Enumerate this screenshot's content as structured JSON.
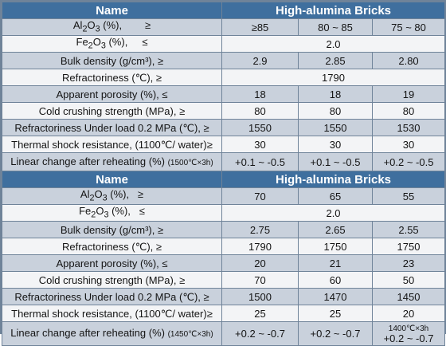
{
  "tables": [
    {
      "header": {
        "name": "Name",
        "product": "High-alumina Bricks"
      },
      "rows": [
        {
          "label": [
            "Al",
            "2",
            "O",
            "3",
            " (%),        ≥"
          ],
          "v": [
            "≥85",
            "80 ~ 85",
            "75 ~ 80"
          ]
        },
        {
          "label": [
            "Fe",
            "2",
            "O",
            "3",
            " (%),     ≤"
          ],
          "v": [
            "2.0"
          ]
        },
        {
          "label_text": "Bulk density (g/cm³),   ≥",
          "v": [
            "2.9",
            "2.85",
            "2.80"
          ]
        },
        {
          "label_text": "Refractoriness (℃),  ≥",
          "v": [
            "1790"
          ]
        },
        {
          "label_text": "Apparent porosity (%),  ≤",
          "v": [
            "18",
            "18",
            "19"
          ]
        },
        {
          "label_text": "Cold crushing strength (MPa),  ≥",
          "v": [
            "80",
            "80",
            "80"
          ]
        },
        {
          "label_text": "Refractoriness Under load 0.2 MPa (℃),  ≥",
          "v": [
            "1550",
            "1550",
            "1530"
          ]
        },
        {
          "label_text": "Thermal shock resistance, (1100℃/ water)≥",
          "v": [
            "30",
            "30",
            "30"
          ]
        },
        {
          "label_main": "Linear change after reheating (%) ",
          "label_small": "(1500℃×3h)",
          "v": [
            "+0.1 ~ -0.5",
            "+0.1 ~ -0.5",
            "+0.2 ~ -0.5"
          ]
        }
      ]
    },
    {
      "header": {
        "name": "Name",
        "product": "High-alumina Bricks"
      },
      "rows": [
        {
          "label": [
            "Al",
            "2",
            "O",
            "3",
            " (%),   ≥"
          ],
          "v": [
            "70",
            "65",
            "55"
          ]
        },
        {
          "label": [
            "Fe",
            "2",
            "O",
            "3",
            " (%),   ≤"
          ],
          "v": [
            "2.0"
          ]
        },
        {
          "label_text": "Bulk density (g/cm³),   ≥",
          "v": [
            "2.75",
            "2.65",
            "2.55"
          ]
        },
        {
          "label_text": "Refractoriness (℃),   ≥",
          "v": [
            "1790",
            "1750",
            "1750"
          ]
        },
        {
          "label_text": "Apparent porosity (%),  ≤",
          "v": [
            "20",
            "21",
            "23"
          ]
        },
        {
          "label_text": "Cold crushing strength (MPa),  ≥",
          "v": [
            "70",
            "60",
            "50"
          ]
        },
        {
          "label_text": "Refractoriness Under load 0.2 MPa (℃),  ≥",
          "v": [
            "1500",
            "1470",
            "1450"
          ]
        },
        {
          "label_text": "Thermal shock resistance, (1100℃/ water)≥",
          "v": [
            "25",
            "25",
            "20"
          ]
        },
        {
          "label_main": "Linear change after reheating (%) ",
          "label_small": "(1450℃×3h)",
          "v": [
            "+0.2 ~ -0.7",
            "+0.2 ~ -0.7"
          ],
          "v3_top": "1400℃×3h",
          "v3_bot": "+0.2 ~ -0.7"
        }
      ]
    }
  ]
}
